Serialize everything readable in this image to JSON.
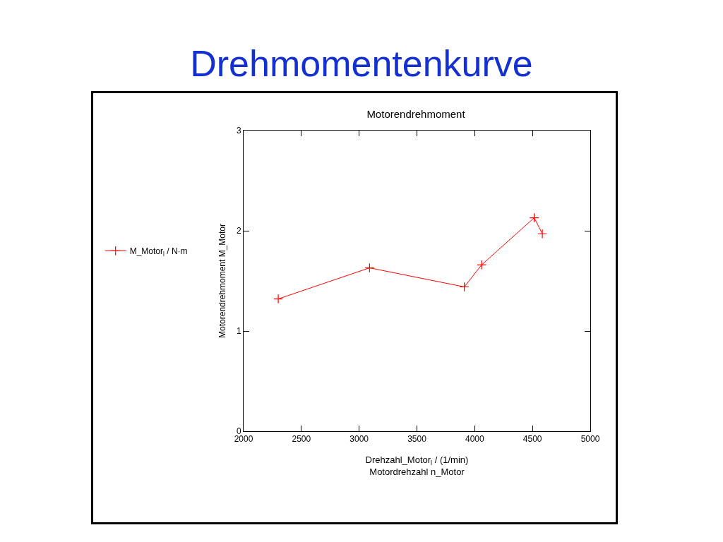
{
  "chart_data": {
    "type": "line",
    "title": "Drehmomentenkurve",
    "subtitle": "Motorendrehmoment",
    "xlabel": "Drehzahl_Motor$_{l}$ / (1/min)\nMotordrehzahl n_Motor",
    "ylabel": "Motorendrehmoment M_Motor",
    "x": [
      2300,
      3090,
      3910,
      4060,
      4515,
      4585
    ],
    "series": [
      {
        "name": "M_Motor$_{l}$ / N·m",
        "color": "#ff0000",
        "values": [
          1.32,
          1.63,
          1.44,
          1.66,
          2.13,
          1.97
        ]
      }
    ],
    "xlim": [
      2000,
      5000
    ],
    "xticks": [
      2000,
      2500,
      3000,
      3500,
      4000,
      4500,
      5000
    ],
    "ylim": [
      0,
      3
    ],
    "yticks": [
      0,
      1,
      2,
      3
    ],
    "grid": false,
    "legend": "left",
    "marker": "cross",
    "line_style": "solid"
  }
}
